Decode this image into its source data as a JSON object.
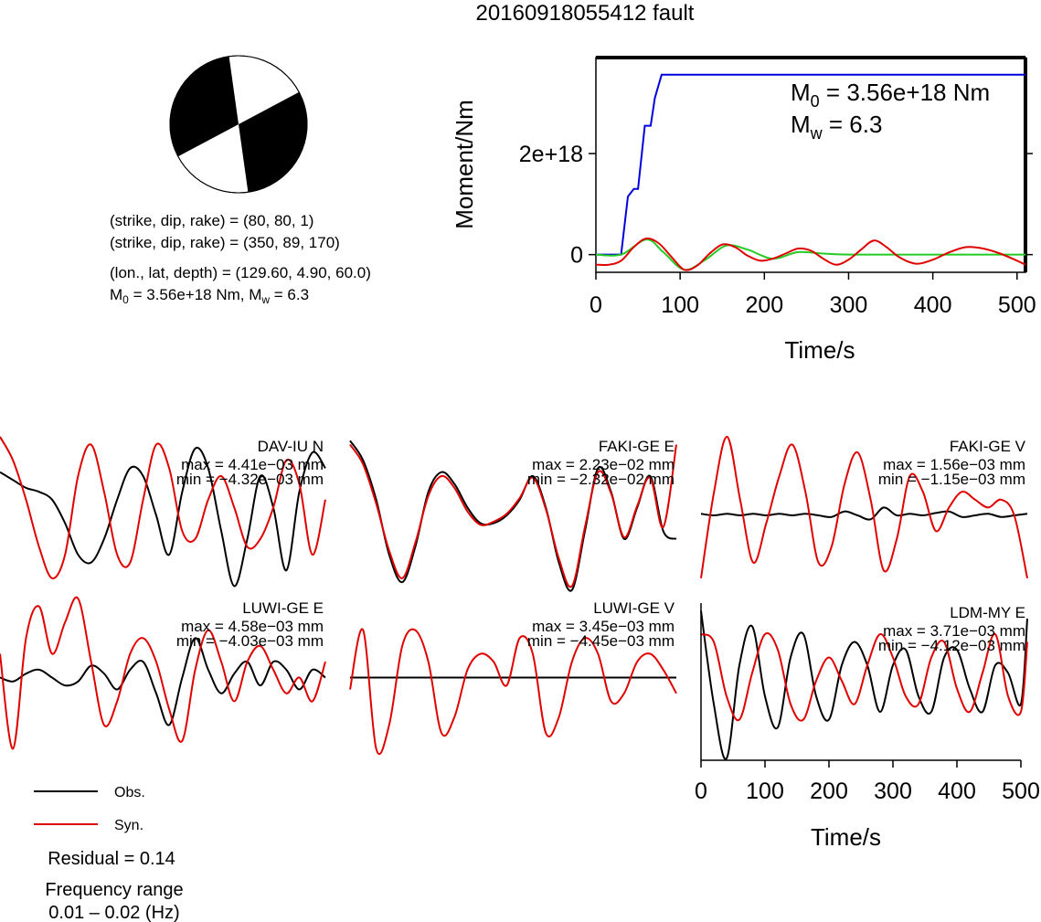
{
  "title": "20160918055412 fault",
  "mechanism": {
    "plane1": "(strike, dip, rake) = (80, 80, 1)",
    "plane2": "(strike, dip, rake) = (350, 89, 170)",
    "location": "(lon., lat, depth) = (129.60, 4.90, 60.0)",
    "moment_line": "M",
    "moment_line_sub": "0",
    "moment_line_rest": " = 3.56e+18 Nm, M",
    "moment_line_sub2": "w",
    "moment_line_end": " = 6.3"
  },
  "moment_annotation": {
    "m0_prefix": "M",
    "m0_sub": "0",
    "m0_value": " = 3.56e+18 Nm",
    "mw_prefix": "M",
    "mw_sub": "w",
    "mw_value": " = 6.3"
  },
  "legend": {
    "obs": "Obs.",
    "syn": "Syn."
  },
  "residual": "Residual = 0.14",
  "frequency_label": "Frequency range",
  "frequency_value": "0.01 – 0.02 (Hz)",
  "colors": {
    "obs": "#000000",
    "syn": "#e00000",
    "moment": "#0000dd",
    "stf": "#22cc22"
  },
  "chart_data": [
    {
      "type": "line",
      "panel": "moment",
      "ylabel": "Moment/Nm",
      "xlabel": "Time/s",
      "xlim": [
        0,
        510
      ],
      "ylim": [
        -3.5e+17,
        3.9e+18
      ],
      "xticks": [
        0,
        100,
        200,
        300,
        400,
        500
      ],
      "xtick_labels": [
        "0",
        "100",
        "200",
        "300",
        "400",
        "500"
      ],
      "yticks": [
        0,
        2e+18
      ],
      "ytick_labels": [
        "0",
        "2e+18"
      ],
      "series": [
        {
          "color": "moment",
          "kind": "step",
          "x": [
            0,
            30,
            38,
            45,
            50,
            58,
            65,
            70,
            78,
            510
          ],
          "y": [
            0,
            0,
            1.15e+18,
            1.3e+18,
            1.3e+18,
            2.55e+18,
            2.55e+18,
            3.1e+18,
            3.56e+18,
            3.56e+18
          ]
        },
        {
          "color": "stf",
          "kind": "smooth",
          "x": [
            0,
            30,
            60,
            80,
            105,
            130,
            155,
            180,
            210,
            240,
            270,
            300,
            350,
            400,
            450,
            510
          ],
          "y": [
            0,
            0,
            3e+17,
            5e+16,
            -3e+17,
            -1e+17,
            1.8e+17,
            1e+17,
            -8e+16,
            5e+16,
            2e+16,
            0,
            0,
            0,
            0,
            0
          ]
        },
        {
          "color": "syn",
          "kind": "smooth",
          "x": [
            0,
            15,
            30,
            45,
            60,
            75,
            90,
            105,
            120,
            135,
            150,
            165,
            180,
            195,
            210,
            225,
            240,
            255,
            270,
            285,
            300,
            315,
            330,
            345,
            360,
            380,
            400,
            420,
            440,
            460,
            480,
            500,
            510
          ],
          "y": [
            -2e+17,
            -2e+17,
            -1.2e+17,
            1.5e+17,
            3.2e+17,
            2.2e+17,
            -5e+16,
            -3e+17,
            -2.2e+17,
            2e+16,
            2e+17,
            1.5e+17,
            -2e+16,
            -1.2e+17,
            -8e+16,
            2e+16,
            1.2e+17,
            8e+16,
            -8e+16,
            -2e+17,
            -1e+17,
            1e+17,
            2.8e+17,
            1.5e+17,
            -5e+16,
            -1.8e+17,
            -1e+17,
            5e+16,
            1.5e+17,
            1.2e+17,
            2e+16,
            -1.2e+17,
            -2e+17
          ]
        }
      ]
    },
    {
      "type": "line",
      "panel": "DAV-IU N",
      "label": "DAV-IU N",
      "max": "max = 4.41e−03 mm",
      "min": "min = −4.32e−03 mm",
      "x": [
        0,
        8,
        16,
        24,
        32,
        40,
        48,
        56,
        64,
        72,
        80,
        88,
        96,
        104,
        112,
        120,
        128,
        136,
        144,
        152,
        160,
        168,
        176,
        184,
        192,
        200
      ],
      "series": [
        {
          "name": "Obs.",
          "y": [
            0.55,
            0.45,
            0.35,
            0.3,
            0.2,
            -0.1,
            -0.5,
            -0.6,
            -0.3,
            0.2,
            0.6,
            0.5,
            0.0,
            -0.5,
            0.3,
            0.85,
            0.6,
            -0.2,
            -0.9,
            -0.3,
            0.5,
            0.1,
            -0.7,
            0.3,
            0.8,
            0.6
          ]
        },
        {
          "name": "Syn.",
          "y": [
            1.0,
            0.7,
            0.2,
            -0.4,
            -0.8,
            -0.5,
            0.5,
            0.9,
            0.3,
            -0.5,
            -0.6,
            0.2,
            0.9,
            0.6,
            -0.2,
            -0.3,
            0.2,
            0.5,
            0.1,
            -0.4,
            -0.3,
            0.1,
            0.7,
            0.4,
            -0.5,
            0.2
          ]
        }
      ]
    },
    {
      "type": "line",
      "panel": "FAKI-GE E",
      "label": "FAKI-GE E",
      "max": "max = 2.23e−02 mm",
      "min": "min = −2.32e−02 mm",
      "x": [
        0,
        8,
        16,
        24,
        32,
        40,
        48,
        56,
        64,
        72,
        80,
        88,
        96,
        104,
        112,
        120,
        128,
        136,
        144,
        152,
        160,
        168,
        176,
        184,
        192,
        200
      ],
      "series": [
        {
          "name": "Obs.",
          "y": [
            0.95,
            0.7,
            0.2,
            -0.5,
            -0.85,
            -0.4,
            0.3,
            0.55,
            0.4,
            0.1,
            -0.1,
            -0.1,
            0.0,
            0.2,
            0.5,
            0.1,
            -0.6,
            -0.95,
            -0.2,
            0.6,
            0.3,
            -0.3,
            0.1,
            0.5,
            -0.2,
            -0.3
          ]
        },
        {
          "name": "Syn.",
          "y": [
            0.9,
            0.65,
            0.15,
            -0.45,
            -0.8,
            -0.35,
            0.25,
            0.5,
            0.35,
            0.05,
            -0.12,
            -0.08,
            0.02,
            0.22,
            0.48,
            0.08,
            -0.55,
            -0.9,
            -0.15,
            0.55,
            0.28,
            -0.28,
            0.12,
            0.48,
            -0.15,
            0.9
          ]
        }
      ]
    },
    {
      "type": "line",
      "panel": "FAKI-GE V",
      "label": "FAKI-GE V",
      "max": "max = 1.56e−03 mm",
      "min": "min = −1.15e−03 mm",
      "x": [
        0,
        8,
        16,
        24,
        32,
        40,
        48,
        56,
        64,
        72,
        80,
        88,
        96,
        104,
        112,
        120,
        128,
        136,
        144,
        152,
        160,
        168,
        176,
        184,
        192,
        200
      ],
      "series": [
        {
          "name": "Obs.",
          "y": [
            0.02,
            0.0,
            0.02,
            0.0,
            0.02,
            0.0,
            0.02,
            0.0,
            0.02,
            0.0,
            -0.02,
            0.05,
            0.0,
            -0.05,
            0.1,
            0.0,
            0.02,
            0.0,
            0.03,
            0.05,
            -0.02,
            0.0,
            0.02,
            -0.02,
            0.0,
            0.02
          ]
        },
        {
          "name": "Syn.",
          "y": [
            -0.8,
            0.3,
            1.0,
            0.2,
            -0.6,
            -0.1,
            0.5,
            0.9,
            0.3,
            -0.6,
            -0.4,
            0.4,
            0.8,
            0.2,
            -0.7,
            -0.3,
            0.5,
            0.3,
            -0.2,
            0.1,
            0.3,
            0.2,
            0.1,
            0.2,
            0.0,
            -0.8
          ]
        }
      ]
    },
    {
      "type": "line",
      "panel": "LUWI-GE E",
      "label": "LUWI-GE E",
      "max": "max = 4.58e−03 mm",
      "min": "min = −4.03e−03 mm",
      "x": [
        0,
        8,
        16,
        24,
        32,
        40,
        48,
        56,
        64,
        72,
        80,
        88,
        96,
        104,
        112,
        120,
        128,
        136,
        144,
        152,
        160,
        168,
        176,
        184,
        192,
        200
      ],
      "series": [
        {
          "name": "Obs.",
          "y": [
            0.0,
            -0.05,
            0.05,
            0.1,
            0.0,
            -0.1,
            -0.05,
            0.15,
            0.05,
            -0.15,
            0.1,
            0.2,
            -0.2,
            -0.6,
            0.0,
            0.5,
            0.1,
            -0.2,
            0.05,
            0.2,
            -0.1,
            0.2,
            0.1,
            -0.15,
            0.1,
            0.0
          ]
        },
        {
          "name": "Syn.",
          "y": [
            0.3,
            -0.9,
            0.5,
            0.9,
            0.3,
            0.7,
            1.0,
            0.2,
            -0.6,
            -0.3,
            0.3,
            0.5,
            0.2,
            -0.4,
            -0.8,
            0.1,
            0.6,
            0.2,
            -0.3,
            0.2,
            0.4,
            0.1,
            -0.2,
            0.0,
            -0.3,
            0.2
          ]
        }
      ]
    },
    {
      "type": "line",
      "panel": "LUWI-GE V",
      "label": "LUWI-GE V",
      "max": "max = 3.45e−03 mm",
      "min": "min = −4.45e−03 mm",
      "x": [
        0,
        8,
        16,
        24,
        32,
        40,
        48,
        56,
        64,
        72,
        80,
        88,
        96,
        104,
        112,
        120,
        128,
        136,
        144,
        152,
        160,
        168,
        176,
        184,
        192,
        200
      ],
      "series": [
        {
          "name": "Obs.",
          "y": [
            0.0,
            0.0,
            0.0,
            0.0,
            0.0,
            0.0,
            0.0,
            0.0,
            0.0,
            0.0,
            0.0,
            0.0,
            0.0,
            0.0,
            0.0,
            0.0,
            0.0,
            0.0,
            0.0,
            0.0,
            0.0,
            0.0,
            0.0,
            0.0,
            0.0,
            0.0
          ]
        },
        {
          "name": "Syn.",
          "y": [
            -0.15,
            0.6,
            -0.9,
            -0.6,
            0.4,
            0.6,
            0.2,
            -0.7,
            -0.5,
            0.1,
            0.3,
            0.2,
            -0.1,
            0.5,
            0.3,
            -0.7,
            -0.5,
            0.2,
            0.5,
            0.3,
            -0.3,
            -0.2,
            0.2,
            0.3,
            0.1,
            -0.2
          ]
        }
      ]
    },
    {
      "type": "line",
      "panel": "LDM-MY E",
      "label": "LDM-MY E",
      "max": "max = 3.71e−03 mm",
      "min": "min = −4.12e−03 mm",
      "xlabel": "Time/s",
      "xlim": [
        0,
        510
      ],
      "xticks": [
        0,
        100,
        200,
        300,
        400,
        500
      ],
      "xtick_labels": [
        "0",
        "100",
        "200",
        "300",
        "400",
        "500"
      ],
      "x": [
        0,
        20,
        40,
        60,
        80,
        100,
        120,
        140,
        160,
        180,
        200,
        220,
        240,
        260,
        280,
        300,
        320,
        340,
        360,
        380,
        400,
        420,
        440,
        460,
        480,
        500,
        510
      ],
      "series": [
        {
          "name": "Obs.",
          "y": [
            0.9,
            -0.3,
            -1.0,
            0.2,
            0.7,
            -0.2,
            -0.6,
            0.3,
            0.6,
            -0.2,
            -0.5,
            0.2,
            0.5,
            0.2,
            -0.4,
            0.2,
            0.4,
            -0.2,
            -0.4,
            0.3,
            0.4,
            -0.1,
            -0.4,
            0.2,
            0.1,
            -0.3,
            0.8
          ]
        },
        {
          "name": "Syn.",
          "y": [
            0.6,
            0.5,
            -0.2,
            -0.5,
            0.1,
            0.6,
            0.4,
            -0.3,
            -0.5,
            0.0,
            0.3,
            0.0,
            -0.3,
            0.2,
            0.6,
            0.3,
            -0.2,
            -0.3,
            0.3,
            0.5,
            -0.1,
            -0.4,
            0.1,
            0.6,
            -0.2,
            -0.4,
            0.5
          ]
        }
      ]
    }
  ]
}
